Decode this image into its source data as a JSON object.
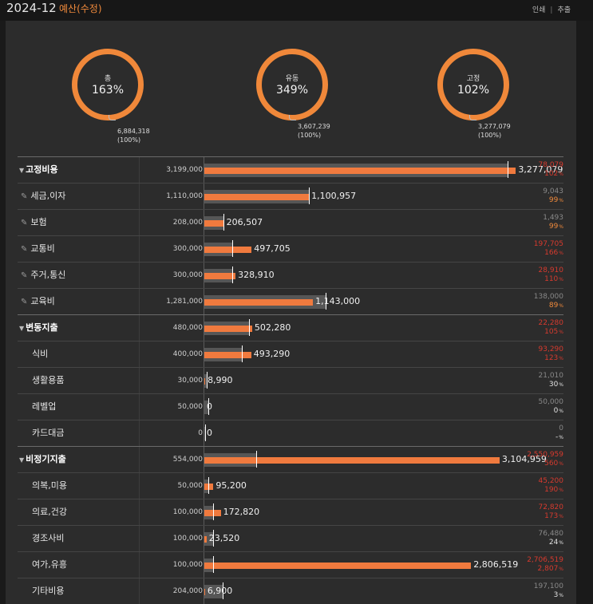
{
  "header": {
    "period": "2024-12",
    "title": "예산(수정)",
    "print_label": "인쇄",
    "export_label": "추출"
  },
  "summary": [
    {
      "label": "총",
      "percent": "163%",
      "amount": "6,884,318",
      "share": "(100%)"
    },
    {
      "label": "유동",
      "percent": "349%",
      "amount": "3,607,239",
      "share": "(100%)"
    },
    {
      "label": "고정",
      "percent": "102%",
      "amount": "3,277,079",
      "share": "(100%)"
    }
  ],
  "colors": {
    "actual_bar": "#f07a3e",
    "budget_bar": "#565656",
    "over": "#d63a2e",
    "accent": "#f08a3c"
  },
  "bar_scale_max": 3400000,
  "rows": [
    {
      "name": "고정비용",
      "type": "group",
      "budget": "3,199,000",
      "actual": "3,277,079",
      "budget_value": 3199000,
      "actual_value": 3277079,
      "diff": "78,079",
      "pct": "102",
      "status": "over"
    },
    {
      "name": "세금,이자",
      "type": "pinned",
      "budget": "1,110,000",
      "actual": "1,100,957",
      "budget_value": 1110000,
      "actual_value": 1100957,
      "diff": "9,043",
      "pct": "99",
      "status": "under-warn"
    },
    {
      "name": "보험",
      "type": "pinned",
      "budget": "208,000",
      "actual": "206,507",
      "budget_value": 208000,
      "actual_value": 206507,
      "diff": "1,493",
      "pct": "99",
      "status": "under-warn"
    },
    {
      "name": "교통비",
      "type": "pinned",
      "budget": "300,000",
      "actual": "497,705",
      "budget_value": 300000,
      "actual_value": 497705,
      "diff": "197,705",
      "pct": "166",
      "status": "over"
    },
    {
      "name": "주거,통신",
      "type": "pinned",
      "budget": "300,000",
      "actual": "328,910",
      "budget_value": 300000,
      "actual_value": 328910,
      "diff": "28,910",
      "pct": "110",
      "status": "over"
    },
    {
      "name": "교육비",
      "type": "pinned",
      "budget": "1,281,000",
      "actual": "1,143,000",
      "budget_value": 1281000,
      "actual_value": 1143000,
      "diff": "138,000",
      "pct": "89",
      "status": "under-warn"
    },
    {
      "name": "변동지출",
      "type": "group",
      "budget": "480,000",
      "actual": "502,280",
      "budget_value": 480000,
      "actual_value": 502280,
      "diff": "22,280",
      "pct": "105",
      "status": "over"
    },
    {
      "name": "식비",
      "type": "item",
      "budget": "400,000",
      "actual": "493,290",
      "budget_value": 400000,
      "actual_value": 493290,
      "diff": "93,290",
      "pct": "123",
      "status": "over"
    },
    {
      "name": "생활용품",
      "type": "item",
      "budget": "30,000",
      "actual": "8,990",
      "budget_value": 30000,
      "actual_value": 8990,
      "diff": "21,010",
      "pct": "30",
      "status": "under"
    },
    {
      "name": "레벨업",
      "type": "item",
      "budget": "50,000",
      "actual": "0",
      "budget_value": 50000,
      "actual_value": 0,
      "diff": "50,000",
      "pct": "0",
      "status": "under"
    },
    {
      "name": "카드대금",
      "type": "item",
      "budget": "0",
      "actual": "0",
      "budget_value": 0,
      "actual_value": 0,
      "diff": "0",
      "pct": "-",
      "status": "under"
    },
    {
      "name": "비정기지출",
      "type": "group",
      "budget": "554,000",
      "actual": "3,104,959",
      "budget_value": 554000,
      "actual_value": 3104959,
      "diff": "2,550,959",
      "pct": "560",
      "status": "over"
    },
    {
      "name": "의복,미용",
      "type": "item",
      "budget": "50,000",
      "actual": "95,200",
      "budget_value": 50000,
      "actual_value": 95200,
      "diff": "45,200",
      "pct": "190",
      "status": "over"
    },
    {
      "name": "의료,건강",
      "type": "item",
      "budget": "100,000",
      "actual": "172,820",
      "budget_value": 100000,
      "actual_value": 172820,
      "diff": "72,820",
      "pct": "173",
      "status": "over"
    },
    {
      "name": "경조사비",
      "type": "item",
      "budget": "100,000",
      "actual": "23,520",
      "budget_value": 100000,
      "actual_value": 23520,
      "diff": "76,480",
      "pct": "24",
      "status": "under"
    },
    {
      "name": "여가,유흥",
      "type": "item",
      "budget": "100,000",
      "actual": "2,806,519",
      "budget_value": 100000,
      "actual_value": 2806519,
      "diff": "2,706,519",
      "pct": "2,807",
      "status": "over"
    },
    {
      "name": "기타비용",
      "type": "item",
      "budget": "204,000",
      "actual": "6,900",
      "budget_value": 204000,
      "actual_value": 6900,
      "diff": "197,100",
      "pct": "3",
      "status": "under"
    }
  ]
}
